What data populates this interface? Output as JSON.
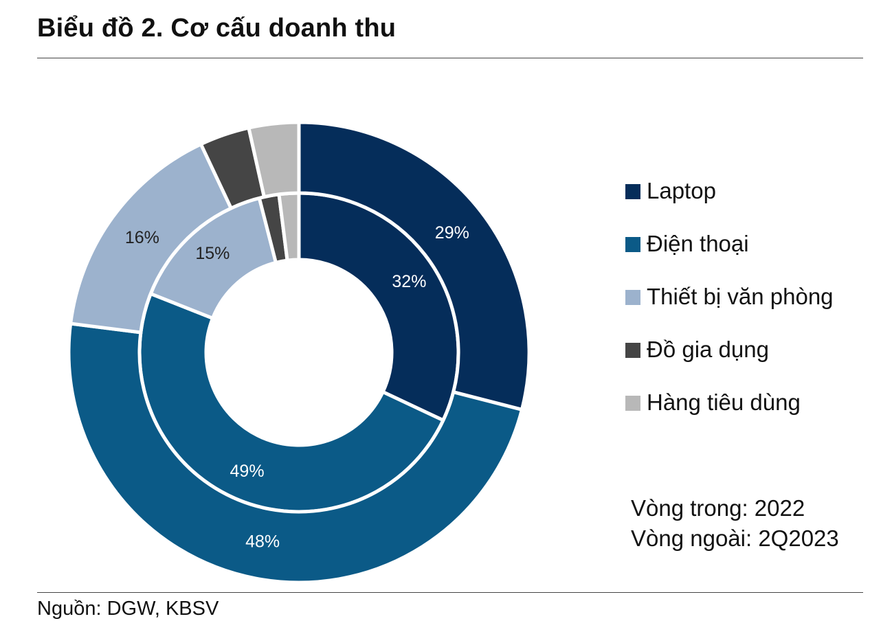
{
  "title": "Biểu đồ 2. Cơ cấu doanh thu",
  "source": "Nguồn: DGW, KBSV",
  "note": {
    "inner": "Vòng trong: 2022",
    "outer": "Vòng ngoài: 2Q2023"
  },
  "colors": {
    "laptop": "#052d5a",
    "dien_thoai": "#0b5a87",
    "van_phong": "#9cb2cd",
    "gia_dung": "#454545",
    "tieu_dung": "#b8b8b8"
  },
  "chart_data": {
    "type": "donut",
    "categories": [
      "Laptop",
      "Điện thoại",
      "Thiết bị văn phòng",
      "Đồ gia dụng",
      "Hàng tiêu dùng"
    ],
    "legend_position": "right",
    "series": [
      {
        "name": "Vòng trong: 2022",
        "ring": "inner",
        "values": [
          32,
          49,
          15,
          2,
          2
        ],
        "labels": [
          "32%",
          "49%",
          "15%",
          "",
          ""
        ]
      },
      {
        "name": "Vòng ngoài: 2Q2023",
        "ring": "outer",
        "values": [
          29,
          48,
          16,
          3.5,
          3.5
        ],
        "labels": [
          "29%",
          "48%",
          "16%",
          "",
          ""
        ]
      }
    ]
  }
}
